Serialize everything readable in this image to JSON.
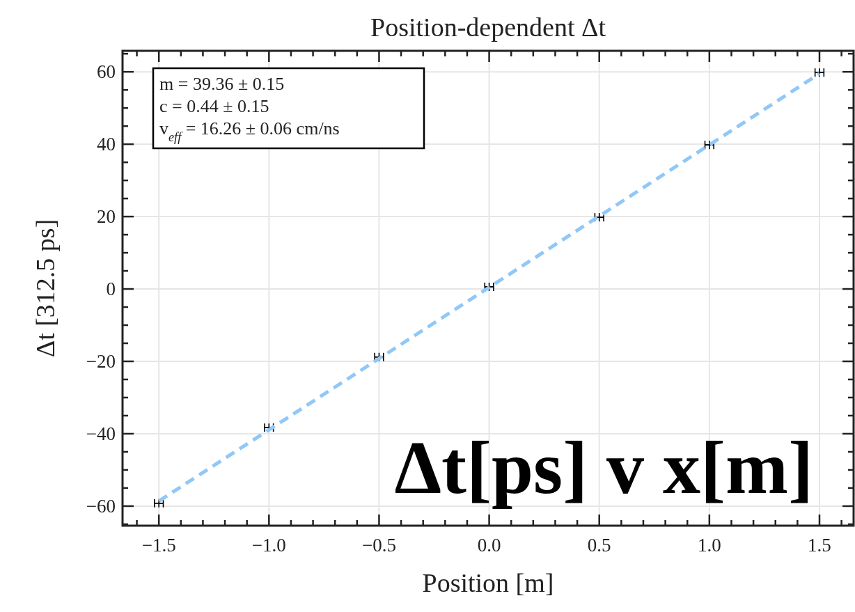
{
  "chart_data": {
    "type": "scatter",
    "title": "Position-dependent Δt",
    "xlabel": "Position [m]",
    "ylabel": "Δt [312.5 ps]",
    "x": [
      -1.5,
      -1.0,
      -0.5,
      0.0,
      0.5,
      1.0,
      1.5
    ],
    "series": [
      {
        "type": "scatter",
        "color": "#000000",
        "values": [
          -59.2,
          -38.3,
          -18.8,
          0.6,
          19.8,
          39.8,
          59.8
        ],
        "xerrors": [
          0.02,
          0.02,
          0.02,
          0.02,
          0.02,
          0.02,
          0.02
        ],
        "marker": "cross"
      },
      {
        "type": "line",
        "color": "#90c8f8",
        "x": [
          -1.5,
          1.5
        ],
        "values": [
          -58.6,
          59.5
        ],
        "line_style": "dashed"
      }
    ],
    "xlim": [
      -1.665,
      1.655
    ],
    "ylim": [
      -65.4,
      65.8
    ],
    "xticks": [
      {
        "value": -1.5,
        "label": "−1.5"
      },
      {
        "value": -1.0,
        "label": "−1.0"
      },
      {
        "value": -0.5,
        "label": "−0.5"
      },
      {
        "value": 0,
        "label": "0.0"
      },
      {
        "value": 0.5,
        "label": "0.5"
      },
      {
        "value": 1.0,
        "label": "1.0"
      },
      {
        "value": 1.5,
        "label": "1.5"
      }
    ],
    "yticks": [
      {
        "value": -60,
        "label": "−60"
      },
      {
        "value": -40,
        "label": "−40"
      },
      {
        "value": -20,
        "label": "−20"
      },
      0,
      20,
      40,
      60
    ],
    "grid": true,
    "annotations": [
      "m = 39.36 ± 0.15",
      "c = 0.44 ± 0.15",
      "v$_{eff}$ = 16.26 ± 0.06 cm/ns",
      "Δt[ps] v x[m]"
    ]
  }
}
